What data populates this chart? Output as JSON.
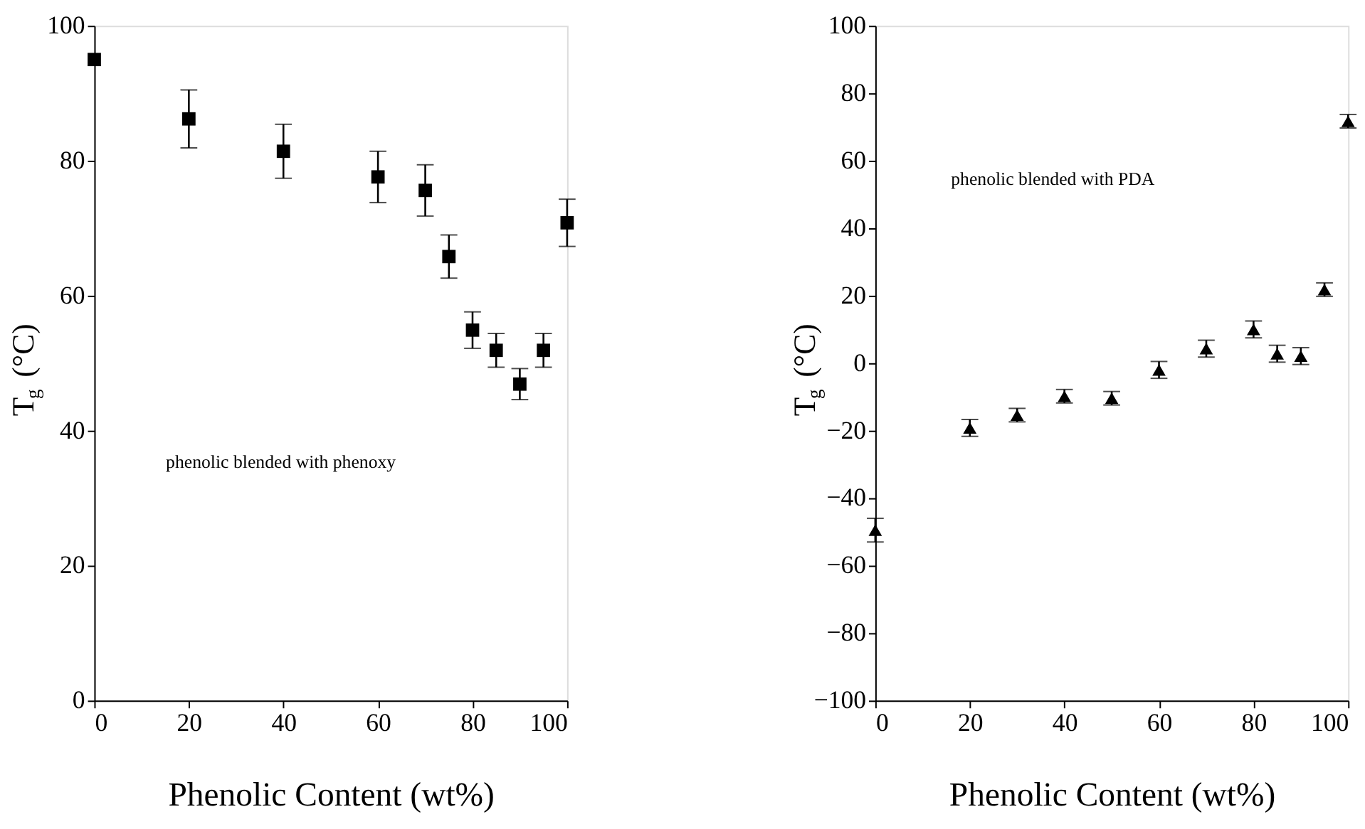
{
  "chart_data": [
    {
      "type": "scatter",
      "xlabel": "Phenolic Content (wt%)",
      "ylabel": "T$_{g}$ (°C)",
      "annotations": [
        "phenolic blended with phenoxy"
      ],
      "x": [
        0,
        20,
        40,
        60,
        70,
        75,
        80,
        85,
        90,
        95,
        100
      ],
      "values": [
        95,
        86.2,
        81.4,
        77.6,
        75.6,
        65.8,
        54.9,
        51.9,
        46.9,
        51.9,
        70.8
      ],
      "errors": [
        null,
        4.3,
        4,
        3.8,
        3.8,
        3.2,
        2.7,
        2.5,
        2.3,
        2.5,
        3.5
      ],
      "color": "#000000",
      "marker": "square",
      "xlim": [
        0,
        100
      ],
      "xticks": [
        0,
        20,
        40,
        60,
        80,
        100
      ],
      "ylim": [
        0,
        100
      ],
      "yticks": [
        0,
        20,
        40,
        60,
        80,
        100
      ],
      "grid": false
    },
    {
      "type": "scatter",
      "xlabel": "Phenolic Content (wt%)",
      "ylabel": "T$_{g}$ (°C)",
      "annotations": [
        "phenolic blended with PDA"
      ],
      "x": [
        0,
        20,
        30,
        40,
        50,
        60,
        70,
        80,
        85,
        90,
        95,
        100
      ],
      "values": [
        -49.5,
        -19.2,
        -15.4,
        -9.8,
        -10.4,
        -2,
        4.3,
        10,
        2.8,
        2.1,
        21.8,
        71.7
      ],
      "errors": [
        3.5,
        2.5,
        2,
        2,
        2,
        2.5,
        2.5,
        2.5,
        2.5,
        2.5,
        2,
        2
      ],
      "color": "#000000",
      "marker": "triangle",
      "xlim": [
        0,
        100
      ],
      "xticks": [
        0,
        20,
        40,
        60,
        80,
        100
      ],
      "ylim": [
        -100,
        100
      ],
      "yticks": [
        -100,
        -80,
        -60,
        -40,
        -20,
        0,
        20,
        40,
        60,
        80,
        100
      ],
      "grid": false
    }
  ]
}
